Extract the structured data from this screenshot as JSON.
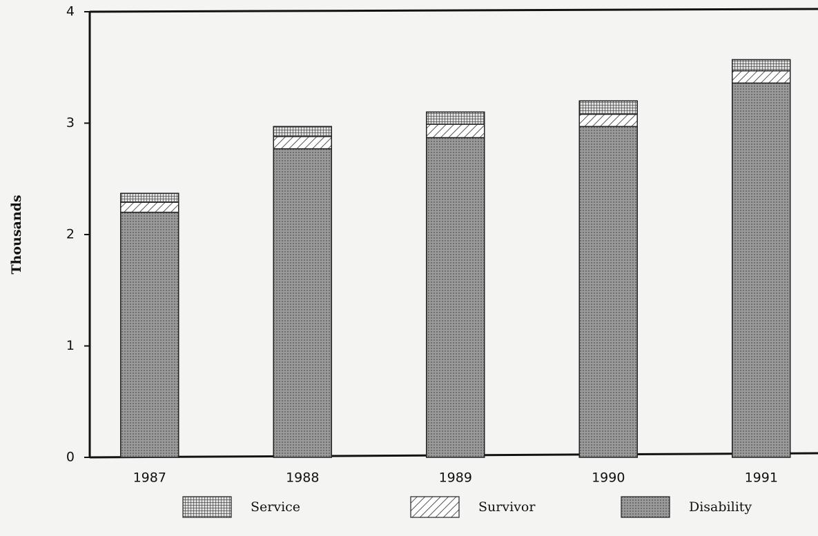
{
  "chart_data": {
    "type": "stacked_bar",
    "y_label": "Thousands",
    "categories": [
      "1987",
      "1988",
      "1989",
      "1990",
      "1991"
    ],
    "series": [
      {
        "name": "Disability",
        "color": "#8c8c8c",
        "pattern": "dots",
        "values": [
          2.2,
          2.77,
          2.87,
          2.97,
          3.36
        ]
      },
      {
        "name": "Survivor",
        "color": "#ffffff",
        "pattern": "hatch",
        "values": [
          0.09,
          0.11,
          0.12,
          0.11,
          0.11
        ]
      },
      {
        "name": "Service",
        "color": "#bdbdbd",
        "pattern": "grid",
        "values": [
          0.08,
          0.09,
          0.11,
          0.12,
          0.1
        ]
      }
    ],
    "legend_order": [
      "Service",
      "Survivor",
      "Disability"
    ],
    "ylim": [
      0,
      4
    ],
    "yticks": [
      0,
      1,
      2,
      3,
      4
    ],
    "grid": false
  }
}
